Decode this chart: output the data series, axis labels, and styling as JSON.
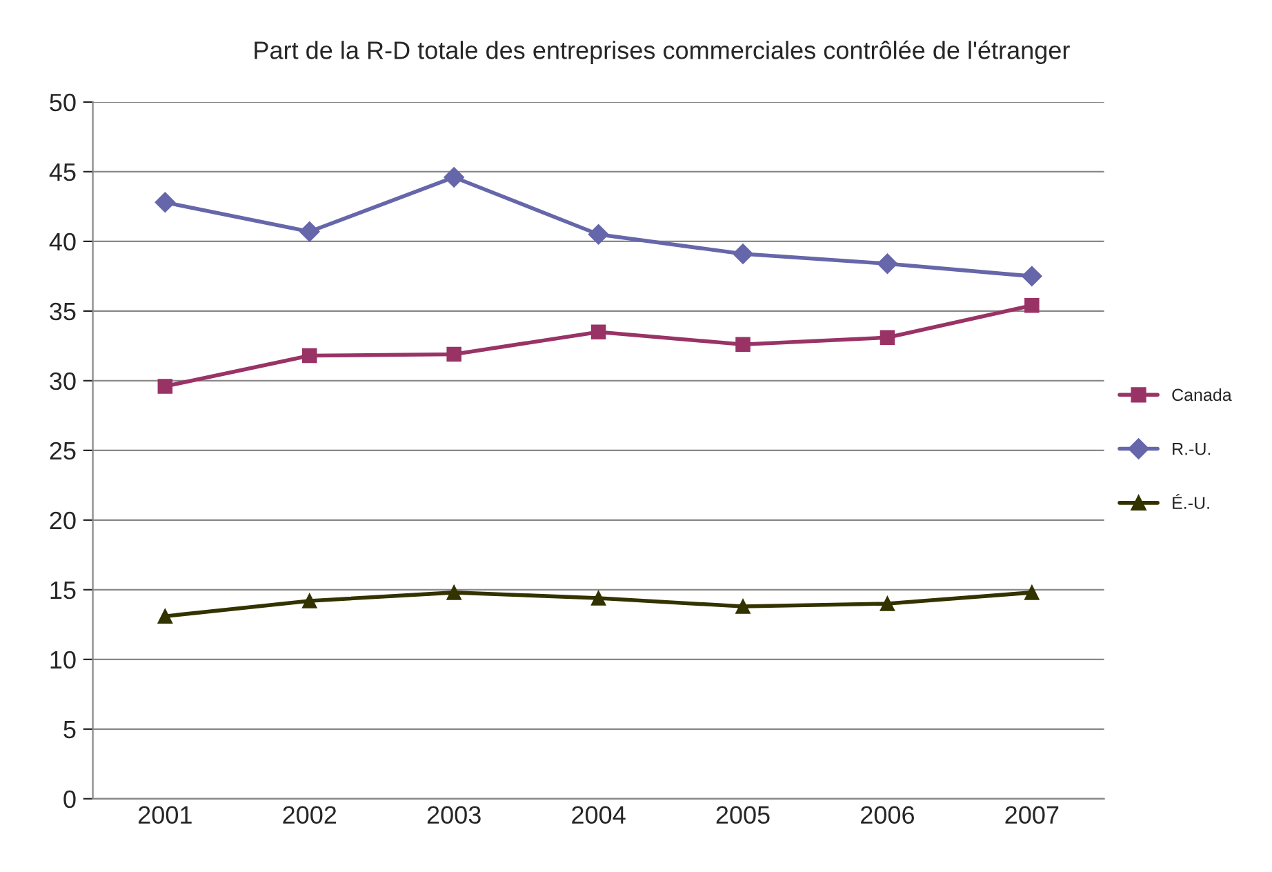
{
  "chart_data": {
    "type": "line",
    "title": "Part de la R-D totale des entreprises commerciales contrôlée de l'étranger",
    "categories": [
      "2001",
      "2002",
      "2003",
      "2004",
      "2005",
      "2006",
      "2007"
    ],
    "series": [
      {
        "name": "Canada",
        "color": "#993366",
        "marker": "square",
        "values": [
          29.6,
          31.8,
          31.9,
          33.5,
          32.6,
          33.1,
          35.4
        ]
      },
      {
        "name": "R.-U.",
        "color": "#6666aa",
        "marker": "diamond",
        "values": [
          42.8,
          40.7,
          44.6,
          40.5,
          39.1,
          38.4,
          37.5
        ]
      },
      {
        "name": "É.-U.",
        "color": "#333300",
        "marker": "triangle",
        "values": [
          13.1,
          14.2,
          14.8,
          14.4,
          13.8,
          14.0,
          14.8
        ]
      }
    ],
    "ylim": [
      0,
      50
    ],
    "yticks": [
      0,
      5,
      10,
      15,
      20,
      25,
      30,
      35,
      40,
      45,
      50
    ],
    "grid": "y",
    "legend": "right",
    "line_style": "solid"
  }
}
